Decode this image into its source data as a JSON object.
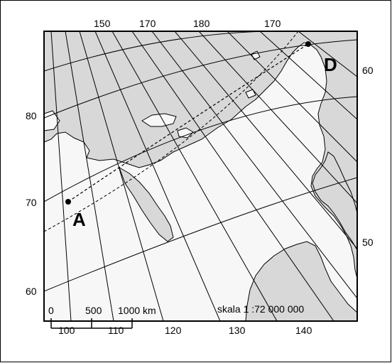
{
  "map": {
    "top_longitude_labels": [
      "150",
      "170",
      "180",
      "170"
    ],
    "bottom_longitude_labels": [
      "100",
      "110",
      "120",
      "130",
      "140"
    ],
    "left_latitude_labels": [
      "80",
      "70",
      "60"
    ],
    "right_latitude_labels": [
      "60",
      "50"
    ],
    "points": [
      {
        "label": "A"
      },
      {
        "label": "D"
      }
    ],
    "scale_bar": {
      "ticks": [
        "0",
        "500",
        "1000 km"
      ],
      "ratio_text": "skala 1 :72 000 000"
    },
    "colors": {
      "sea": "#d8d8d8",
      "land": "#f7f7f7",
      "lines": "#000000"
    }
  }
}
